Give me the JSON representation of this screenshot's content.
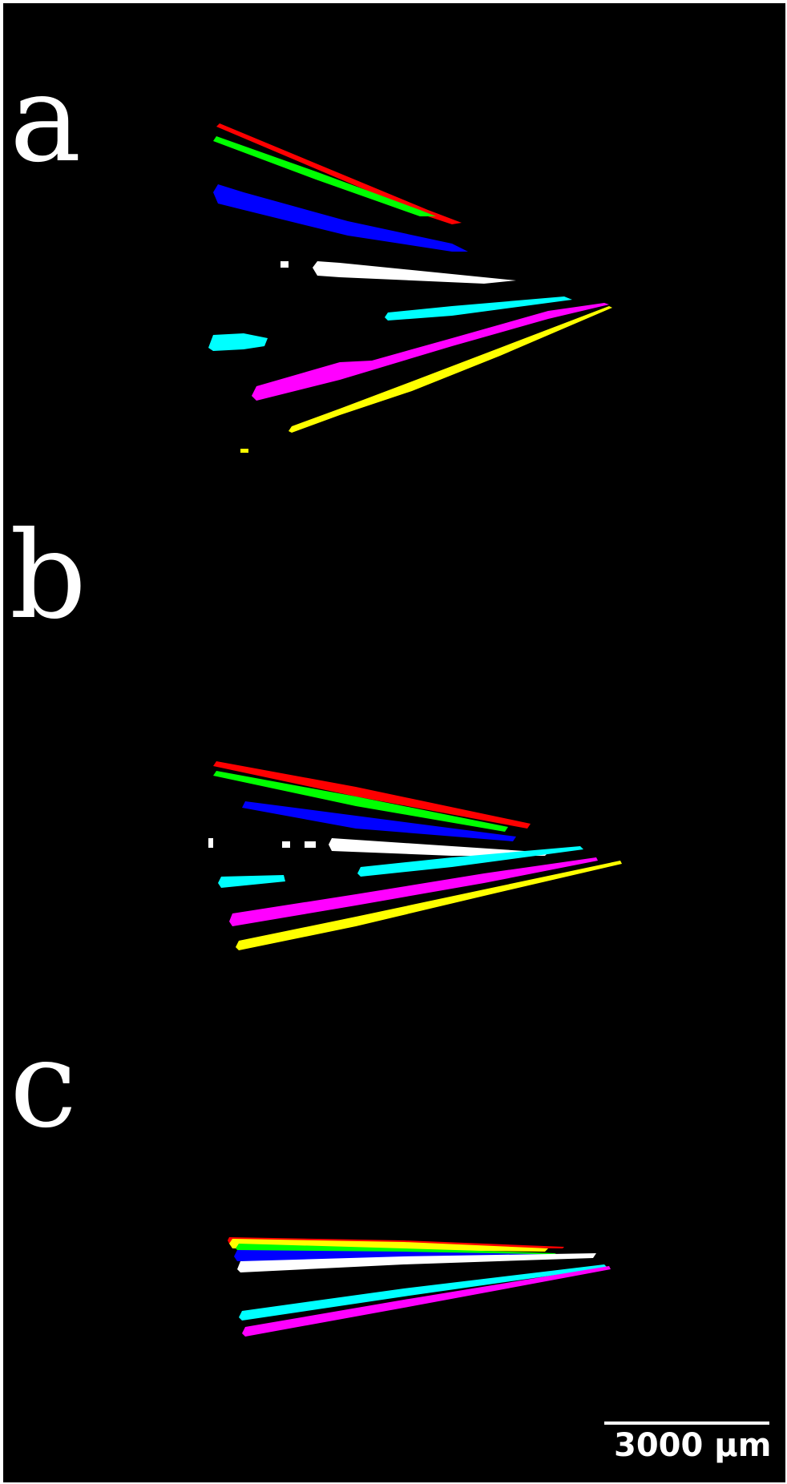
{
  "panels": {
    "a": {
      "label": "a"
    },
    "b": {
      "label": "b"
    },
    "c": {
      "label": "c"
    }
  },
  "scale_bar": {
    "label": "3000 µm"
  },
  "colors": {
    "background": "#000000",
    "red": "#ff0000",
    "green": "#00ff00",
    "blue": "#0000ff",
    "white": "#ffffff",
    "cyan": "#00ffff",
    "magenta": "#ff00ff",
    "yellow": "#ffff00"
  }
}
